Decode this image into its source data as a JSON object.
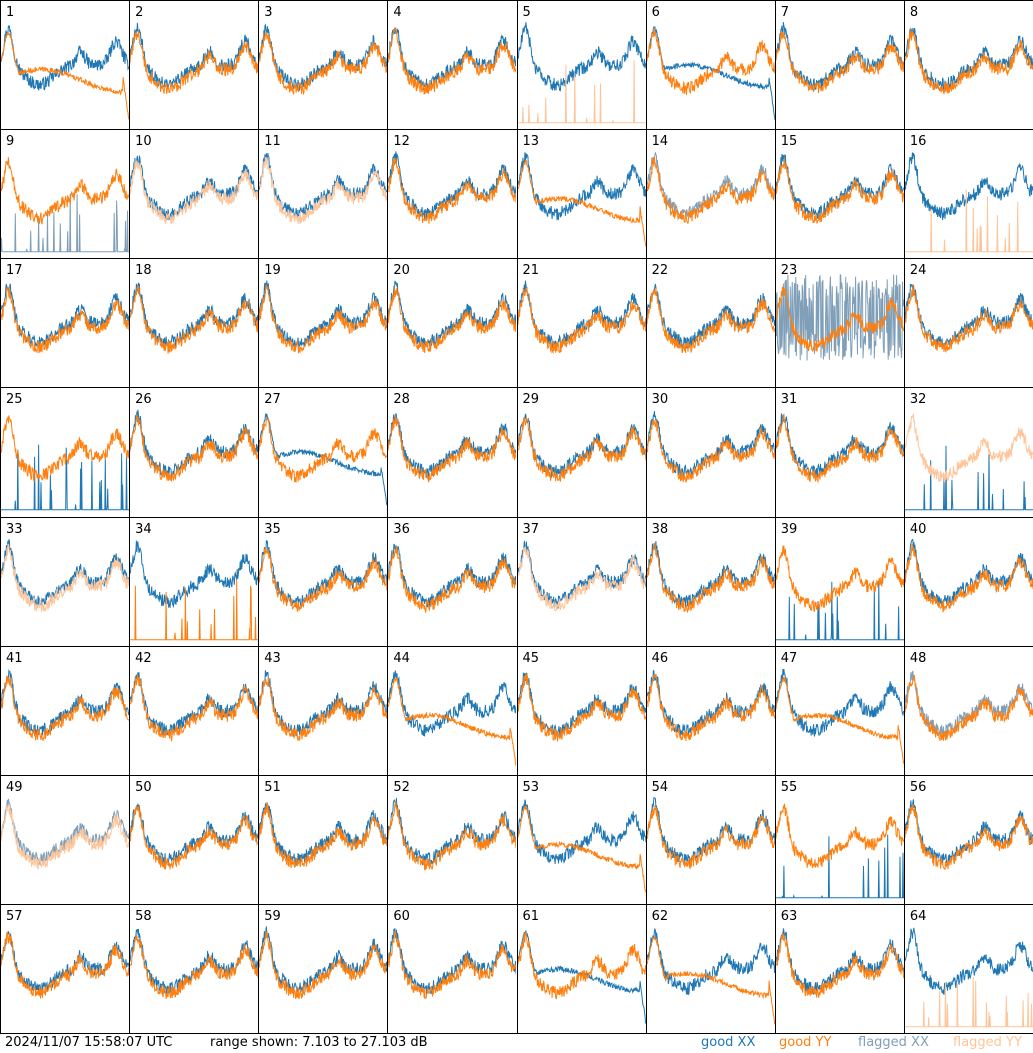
{
  "footer": {
    "timestamp": "2024/11/07 15:58:07 UTC",
    "range_text": "range shown: 7.103 to 27.103 dB"
  },
  "legend": [
    {
      "label": "good XX",
      "color": "#1f77b4"
    },
    {
      "label": "good YY",
      "color": "#ff7f0e"
    },
    {
      "label": "flagged XX",
      "color": "#7f9fb8"
    },
    {
      "label": "flagged YY",
      "color": "#ffc59a"
    }
  ],
  "chart_data": {
    "type": "line",
    "layout": "small multiples 8x8",
    "y_range_db": [
      7.103,
      27.103
    ],
    "panels": [
      {
        "id": "1",
        "xx": "good",
        "yy": "good",
        "yy_profile": "drop"
      },
      {
        "id": "2",
        "xx": "good",
        "yy": "good"
      },
      {
        "id": "3",
        "xx": "good",
        "yy": "good"
      },
      {
        "id": "4",
        "xx": "good",
        "yy": "good"
      },
      {
        "id": "5",
        "xx": "good",
        "yy": "flagged",
        "yy_profile": "spikes"
      },
      {
        "id": "6",
        "xx": "good",
        "yy": "good",
        "xx_profile": "drop"
      },
      {
        "id": "7",
        "xx": "good",
        "yy": "good"
      },
      {
        "id": "8",
        "xx": "good",
        "yy": "good"
      },
      {
        "id": "9",
        "xx": "flagged",
        "yy": "good",
        "xx_profile": "spikes"
      },
      {
        "id": "10",
        "xx": "good",
        "yy": "flagged"
      },
      {
        "id": "11",
        "xx": "good",
        "yy": "flagged"
      },
      {
        "id": "12",
        "xx": "good",
        "yy": "good"
      },
      {
        "id": "13",
        "xx": "good",
        "yy": "good",
        "yy_profile": "drop"
      },
      {
        "id": "14",
        "xx": "flagged",
        "yy": "good"
      },
      {
        "id": "15",
        "xx": "good",
        "yy": "good"
      },
      {
        "id": "16",
        "xx": "good",
        "yy": "flagged",
        "yy_profile": "spikes"
      },
      {
        "id": "17",
        "xx": "good",
        "yy": "good"
      },
      {
        "id": "18",
        "xx": "good",
        "yy": "good"
      },
      {
        "id": "19",
        "xx": "good",
        "yy": "good"
      },
      {
        "id": "20",
        "xx": "good",
        "yy": "good"
      },
      {
        "id": "21",
        "xx": "good",
        "yy": "good"
      },
      {
        "id": "22",
        "xx": "good",
        "yy": "good"
      },
      {
        "id": "23",
        "xx": "flagged",
        "yy": "good",
        "xx_profile": "noisy"
      },
      {
        "id": "24",
        "xx": "good",
        "yy": "good"
      },
      {
        "id": "25",
        "xx": "good",
        "yy": "good",
        "xx_profile": "spikes"
      },
      {
        "id": "26",
        "xx": "good",
        "yy": "good"
      },
      {
        "id": "27",
        "xx": "good",
        "yy": "good",
        "xx_profile": "drop"
      },
      {
        "id": "28",
        "xx": "good",
        "yy": "good"
      },
      {
        "id": "29",
        "xx": "good",
        "yy": "good"
      },
      {
        "id": "30",
        "xx": "good",
        "yy": "good"
      },
      {
        "id": "31",
        "xx": "good",
        "yy": "good"
      },
      {
        "id": "32",
        "xx": "good",
        "yy": "flagged",
        "xx_profile": "spikes"
      },
      {
        "id": "33",
        "xx": "good",
        "yy": "flagged"
      },
      {
        "id": "34",
        "xx": "good",
        "yy": "good",
        "yy_profile": "spikes"
      },
      {
        "id": "35",
        "xx": "good",
        "yy": "good"
      },
      {
        "id": "36",
        "xx": "good",
        "yy": "good"
      },
      {
        "id": "37",
        "xx": "good",
        "yy": "flagged"
      },
      {
        "id": "38",
        "xx": "good",
        "yy": "good"
      },
      {
        "id": "39",
        "xx": "good",
        "yy": "good",
        "xx_profile": "spikes"
      },
      {
        "id": "40",
        "xx": "good",
        "yy": "good"
      },
      {
        "id": "41",
        "xx": "good",
        "yy": "good"
      },
      {
        "id": "42",
        "xx": "good",
        "yy": "good"
      },
      {
        "id": "43",
        "xx": "good",
        "yy": "good"
      },
      {
        "id": "44",
        "xx": "good",
        "yy": "good",
        "yy_profile": "drop"
      },
      {
        "id": "45",
        "xx": "good",
        "yy": "good"
      },
      {
        "id": "46",
        "xx": "good",
        "yy": "good"
      },
      {
        "id": "47",
        "xx": "good",
        "yy": "good",
        "yy_profile": "drop"
      },
      {
        "id": "48",
        "xx": "flagged",
        "yy": "good"
      },
      {
        "id": "49",
        "xx": "flagged",
        "yy": "flagged"
      },
      {
        "id": "50",
        "xx": "good",
        "yy": "good"
      },
      {
        "id": "51",
        "xx": "good",
        "yy": "good"
      },
      {
        "id": "52",
        "xx": "good",
        "yy": "good"
      },
      {
        "id": "53",
        "xx": "good",
        "yy": "good",
        "yy_profile": "drop"
      },
      {
        "id": "54",
        "xx": "good",
        "yy": "good"
      },
      {
        "id": "55",
        "xx": "good",
        "yy": "good",
        "xx_profile": "spikes"
      },
      {
        "id": "56",
        "xx": "good",
        "yy": "good"
      },
      {
        "id": "57",
        "xx": "good",
        "yy": "good"
      },
      {
        "id": "58",
        "xx": "good",
        "yy": "good"
      },
      {
        "id": "59",
        "xx": "good",
        "yy": "good"
      },
      {
        "id": "60",
        "xx": "good",
        "yy": "good"
      },
      {
        "id": "61",
        "xx": "good",
        "yy": "good",
        "xx_profile": "drop"
      },
      {
        "id": "62",
        "xx": "good",
        "yy": "good",
        "yy_profile": "drop"
      },
      {
        "id": "63",
        "xx": "good",
        "yy": "good"
      },
      {
        "id": "64",
        "xx": "good",
        "yy": "flagged",
        "yy_profile": "spikes"
      }
    ]
  }
}
